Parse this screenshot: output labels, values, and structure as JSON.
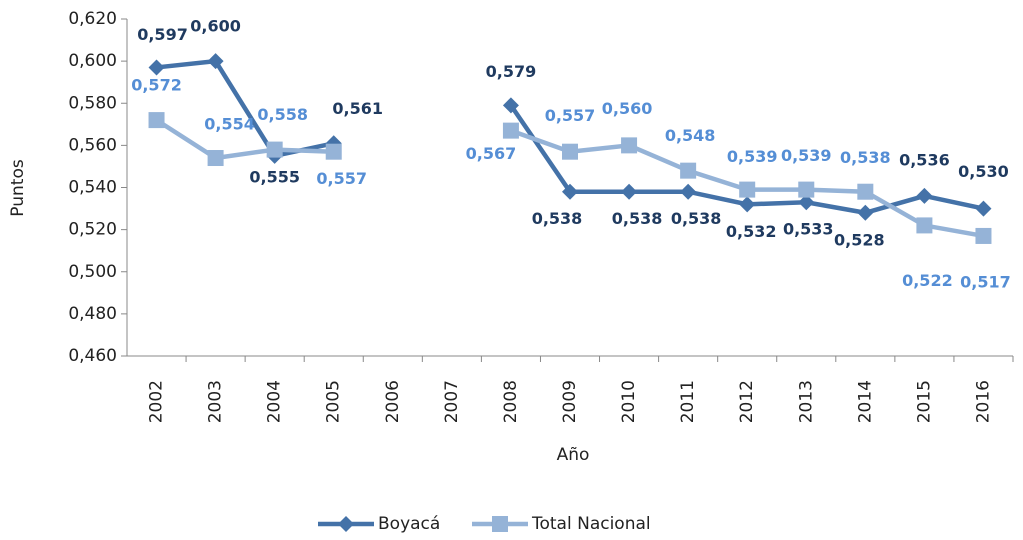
{
  "chart_data": {
    "type": "line",
    "y_label": "Puntos",
    "x_label": "Año",
    "categories": [
      "2002",
      "2003",
      "2004",
      "2005",
      "2006",
      "2007",
      "2008",
      "2009",
      "2010",
      "2011",
      "2012",
      "2013",
      "2014",
      "2015",
      "2016"
    ],
    "ylim": [
      0.46,
      0.62
    ],
    "yticks": [
      {
        "value": 0.46,
        "label": "0,460"
      },
      {
        "value": 0.48,
        "label": "0,480"
      },
      {
        "value": 0.5,
        "label": "0,500"
      },
      {
        "value": 0.52,
        "label": "0,520"
      },
      {
        "value": 0.54,
        "label": "0,540"
      },
      {
        "value": 0.56,
        "label": "0,560"
      },
      {
        "value": 0.58,
        "label": "0,580"
      },
      {
        "value": 0.6,
        "label": "0,600"
      },
      {
        "value": 0.62,
        "label": "0,620"
      }
    ],
    "legend": "bottom",
    "series": [
      {
        "name": "Boyacá",
        "color": "#4472a8",
        "label_color": "#1f3a5f",
        "marker": "diamond",
        "values": [
          0.597,
          0.6,
          0.555,
          0.561,
          null,
          null,
          0.579,
          0.538,
          0.538,
          0.538,
          0.532,
          0.533,
          0.528,
          0.536,
          0.53
        ],
        "value_labels": [
          "0,597",
          "0,600",
          "0,555",
          "0,561",
          null,
          null,
          "0,579",
          "0,538",
          "0,538",
          "0,538",
          "0,532",
          "0,533",
          "0,528",
          "0,536",
          "0,530"
        ]
      },
      {
        "name": "Total Nacional",
        "color": "#95b3d7",
        "label_color": "#558ed5",
        "marker": "square",
        "values": [
          0.572,
          0.554,
          0.558,
          0.557,
          null,
          null,
          0.567,
          0.557,
          0.56,
          0.548,
          0.539,
          0.539,
          0.538,
          0.522,
          0.517
        ],
        "value_labels": [
          "0,572",
          "0,554",
          "0,558",
          "0,557",
          null,
          null,
          "0,567",
          "0,557",
          "0,560",
          "0,548",
          "0,539",
          "0,539",
          "0,538",
          "0,522",
          "0,517"
        ]
      }
    ]
  }
}
